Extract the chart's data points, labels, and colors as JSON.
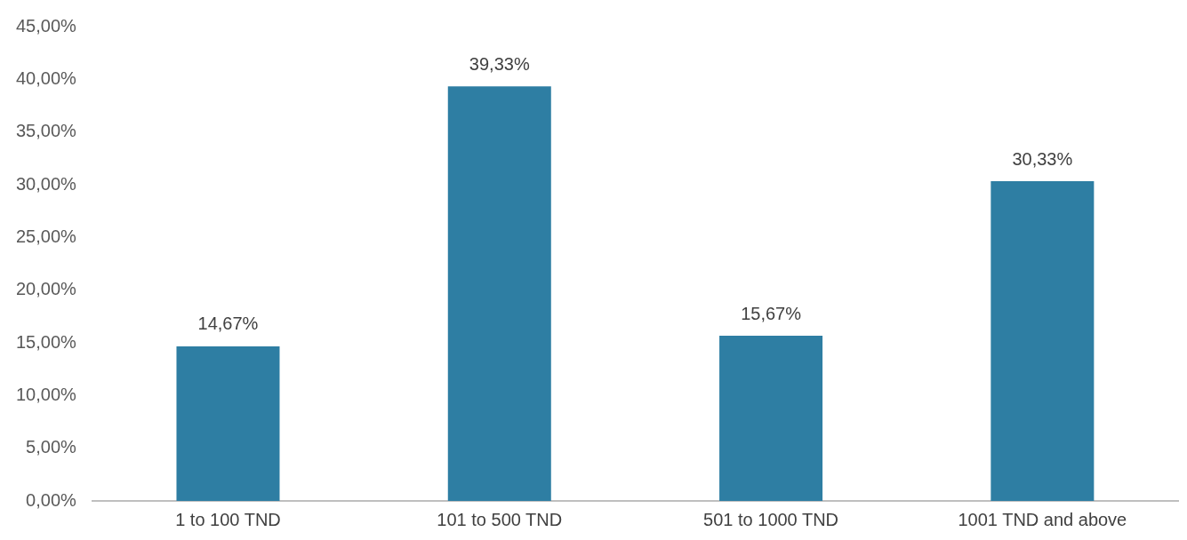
{
  "chart_data": {
    "type": "bar",
    "categories": [
      "1 to 100 TND",
      "101 to 500 TND",
      "501 to 1000 TND",
      "1001 TND and above"
    ],
    "values": [
      14.67,
      39.33,
      15.67,
      30.33
    ],
    "value_labels": [
      "14,67%",
      "39,33%",
      "15,67%",
      "30,33%"
    ],
    "color": "#2e7ea3",
    "ylim": [
      0,
      45
    ],
    "yticks": [
      {
        "value": 0,
        "label": "0,00%"
      },
      {
        "value": 5,
        "label": "5,00%"
      },
      {
        "value": 10,
        "label": "10,00%"
      },
      {
        "value": 15,
        "label": "15,00%"
      },
      {
        "value": 20,
        "label": "20,00%"
      },
      {
        "value": 25,
        "label": "25,00%"
      },
      {
        "value": 30,
        "label": "30,00%"
      },
      {
        "value": 35,
        "label": "35,00%"
      },
      {
        "value": 40,
        "label": "40,00%"
      },
      {
        "value": 45,
        "label": "45,00%"
      }
    ],
    "grid": false,
    "legend": false
  }
}
